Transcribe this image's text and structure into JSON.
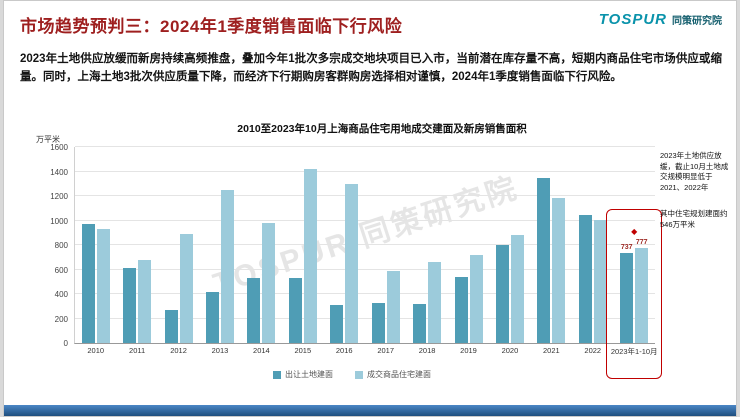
{
  "slide": {
    "title": "市场趋势预判三：2024年1季度销售面临下行风险",
    "body": "2023年土地供应放缓而新房持续高频推盘，叠加今年1批次多宗成交地块项目已入市，当前潜在库存量不高，短期内商品住宅市场供应或缩量。同时，上海土地3批次供应质量下降，而经济下行期购房客群购房选择相对谨慎，2024年1季度销售面临下行风险。",
    "logo": {
      "brand": "TOSPUR",
      "org": "同策研究院"
    },
    "watermark": "TOSPUR 同策研究院"
  },
  "chart_data": {
    "type": "bar",
    "title": "2010至2023年10月上海商品住宅用地成交建面及新房销售面积",
    "unit_label": "万平米",
    "categories": [
      "2010",
      "2011",
      "2012",
      "2013",
      "2014",
      "2015",
      "2016",
      "2017",
      "2018",
      "2019",
      "2020",
      "2021",
      "2022",
      "2023年1-10月"
    ],
    "series": [
      {
        "name": "出让土地建面",
        "color": "#4f9db5",
        "values": [
          970,
          615,
          270,
          420,
          530,
          530,
          310,
          330,
          320,
          540,
          800,
          1350,
          1045,
          737
        ]
      },
      {
        "name": "成交商品住宅建面",
        "color": "#9ccbdb",
        "values": [
          930,
          680,
          890,
          1250,
          980,
          1420,
          1300,
          590,
          660,
          720,
          880,
          1180,
          1005,
          777
        ]
      }
    ],
    "ylim": [
      0,
      1600
    ],
    "ytick_step": 200,
    "grid": true,
    "legend_position": "bottom",
    "point_labels": [
      {
        "series": 0,
        "index": 13,
        "label": "737"
      },
      {
        "series": 1,
        "index": 13,
        "label": "777"
      }
    ],
    "marker": {
      "index": 13,
      "shape": "diamond",
      "color": "#c00000"
    },
    "highlight_box": {
      "category": "2023年1-10月",
      "color": "#c00000"
    },
    "annotations": [
      {
        "text": "2023年土地供应放缓，截止10月土地成交规模明显低于2021、2022年"
      },
      {
        "text": "其中住宅规划建面约546万平米"
      }
    ]
  }
}
